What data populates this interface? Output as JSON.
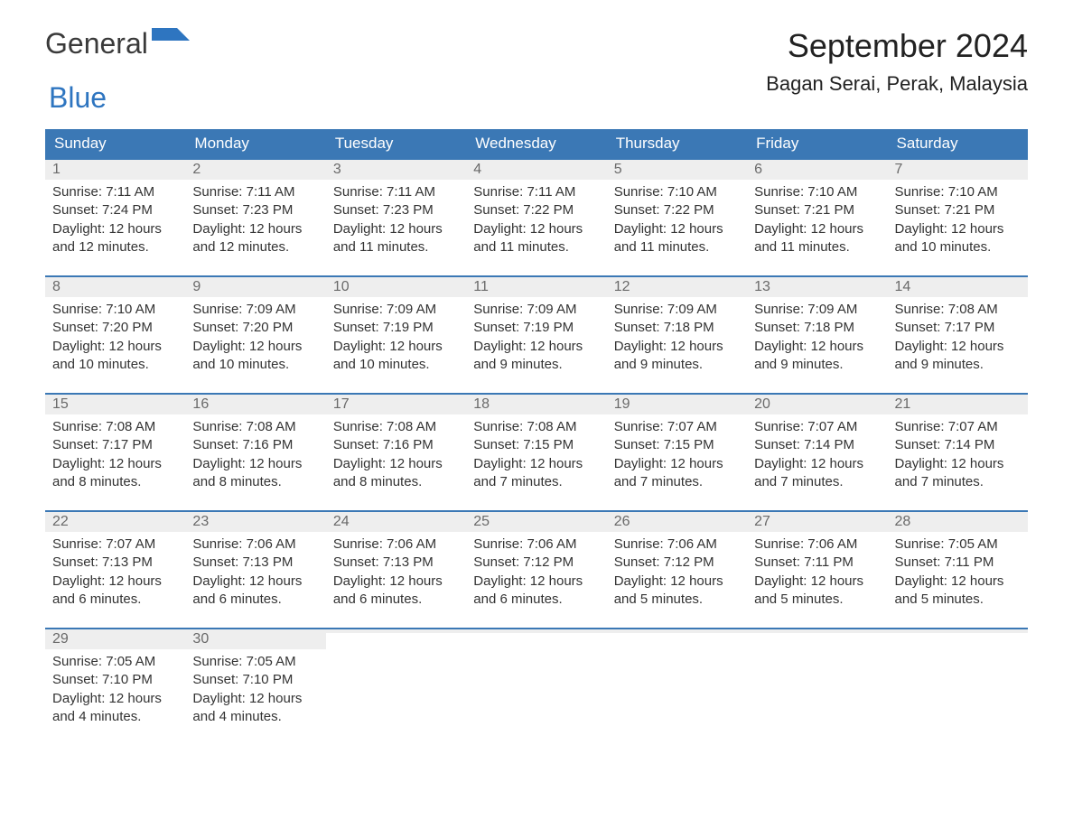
{
  "logo": {
    "text_general": "General",
    "text_blue": "Blue"
  },
  "title": "September 2024",
  "location": "Bagan Serai, Perak, Malaysia",
  "colors": {
    "header_bg": "#3b78b5",
    "header_text": "#ffffff",
    "daynum_bg": "#eeeeee",
    "daynum_text": "#6a6a6a",
    "body_text": "#333333",
    "week_border": "#3b78b5",
    "logo_blue": "#2e75c0",
    "background": "#ffffff"
  },
  "layout": {
    "columns": 7,
    "rows": 5,
    "title_fontsize": 36,
    "location_fontsize": 22,
    "dow_fontsize": 17,
    "daynum_fontsize": 16,
    "content_fontsize": 15
  },
  "days_of_week": [
    "Sunday",
    "Monday",
    "Tuesday",
    "Wednesday",
    "Thursday",
    "Friday",
    "Saturday"
  ],
  "weeks": [
    [
      {
        "num": "1",
        "sunrise": "Sunrise: 7:11 AM",
        "sunset": "Sunset: 7:24 PM",
        "dl1": "Daylight: 12 hours",
        "dl2": "and 12 minutes."
      },
      {
        "num": "2",
        "sunrise": "Sunrise: 7:11 AM",
        "sunset": "Sunset: 7:23 PM",
        "dl1": "Daylight: 12 hours",
        "dl2": "and 12 minutes."
      },
      {
        "num": "3",
        "sunrise": "Sunrise: 7:11 AM",
        "sunset": "Sunset: 7:23 PM",
        "dl1": "Daylight: 12 hours",
        "dl2": "and 11 minutes."
      },
      {
        "num": "4",
        "sunrise": "Sunrise: 7:11 AM",
        "sunset": "Sunset: 7:22 PM",
        "dl1": "Daylight: 12 hours",
        "dl2": "and 11 minutes."
      },
      {
        "num": "5",
        "sunrise": "Sunrise: 7:10 AM",
        "sunset": "Sunset: 7:22 PM",
        "dl1": "Daylight: 12 hours",
        "dl2": "and 11 minutes."
      },
      {
        "num": "6",
        "sunrise": "Sunrise: 7:10 AM",
        "sunset": "Sunset: 7:21 PM",
        "dl1": "Daylight: 12 hours",
        "dl2": "and 11 minutes."
      },
      {
        "num": "7",
        "sunrise": "Sunrise: 7:10 AM",
        "sunset": "Sunset: 7:21 PM",
        "dl1": "Daylight: 12 hours",
        "dl2": "and 10 minutes."
      }
    ],
    [
      {
        "num": "8",
        "sunrise": "Sunrise: 7:10 AM",
        "sunset": "Sunset: 7:20 PM",
        "dl1": "Daylight: 12 hours",
        "dl2": "and 10 minutes."
      },
      {
        "num": "9",
        "sunrise": "Sunrise: 7:09 AM",
        "sunset": "Sunset: 7:20 PM",
        "dl1": "Daylight: 12 hours",
        "dl2": "and 10 minutes."
      },
      {
        "num": "10",
        "sunrise": "Sunrise: 7:09 AM",
        "sunset": "Sunset: 7:19 PM",
        "dl1": "Daylight: 12 hours",
        "dl2": "and 10 minutes."
      },
      {
        "num": "11",
        "sunrise": "Sunrise: 7:09 AM",
        "sunset": "Sunset: 7:19 PM",
        "dl1": "Daylight: 12 hours",
        "dl2": "and 9 minutes."
      },
      {
        "num": "12",
        "sunrise": "Sunrise: 7:09 AM",
        "sunset": "Sunset: 7:18 PM",
        "dl1": "Daylight: 12 hours",
        "dl2": "and 9 minutes."
      },
      {
        "num": "13",
        "sunrise": "Sunrise: 7:09 AM",
        "sunset": "Sunset: 7:18 PM",
        "dl1": "Daylight: 12 hours",
        "dl2": "and 9 minutes."
      },
      {
        "num": "14",
        "sunrise": "Sunrise: 7:08 AM",
        "sunset": "Sunset: 7:17 PM",
        "dl1": "Daylight: 12 hours",
        "dl2": "and 9 minutes."
      }
    ],
    [
      {
        "num": "15",
        "sunrise": "Sunrise: 7:08 AM",
        "sunset": "Sunset: 7:17 PM",
        "dl1": "Daylight: 12 hours",
        "dl2": "and 8 minutes."
      },
      {
        "num": "16",
        "sunrise": "Sunrise: 7:08 AM",
        "sunset": "Sunset: 7:16 PM",
        "dl1": "Daylight: 12 hours",
        "dl2": "and 8 minutes."
      },
      {
        "num": "17",
        "sunrise": "Sunrise: 7:08 AM",
        "sunset": "Sunset: 7:16 PM",
        "dl1": "Daylight: 12 hours",
        "dl2": "and 8 minutes."
      },
      {
        "num": "18",
        "sunrise": "Sunrise: 7:08 AM",
        "sunset": "Sunset: 7:15 PM",
        "dl1": "Daylight: 12 hours",
        "dl2": "and 7 minutes."
      },
      {
        "num": "19",
        "sunrise": "Sunrise: 7:07 AM",
        "sunset": "Sunset: 7:15 PM",
        "dl1": "Daylight: 12 hours",
        "dl2": "and 7 minutes."
      },
      {
        "num": "20",
        "sunrise": "Sunrise: 7:07 AM",
        "sunset": "Sunset: 7:14 PM",
        "dl1": "Daylight: 12 hours",
        "dl2": "and 7 minutes."
      },
      {
        "num": "21",
        "sunrise": "Sunrise: 7:07 AM",
        "sunset": "Sunset: 7:14 PM",
        "dl1": "Daylight: 12 hours",
        "dl2": "and 7 minutes."
      }
    ],
    [
      {
        "num": "22",
        "sunrise": "Sunrise: 7:07 AM",
        "sunset": "Sunset: 7:13 PM",
        "dl1": "Daylight: 12 hours",
        "dl2": "and 6 minutes."
      },
      {
        "num": "23",
        "sunrise": "Sunrise: 7:06 AM",
        "sunset": "Sunset: 7:13 PM",
        "dl1": "Daylight: 12 hours",
        "dl2": "and 6 minutes."
      },
      {
        "num": "24",
        "sunrise": "Sunrise: 7:06 AM",
        "sunset": "Sunset: 7:13 PM",
        "dl1": "Daylight: 12 hours",
        "dl2": "and 6 minutes."
      },
      {
        "num": "25",
        "sunrise": "Sunrise: 7:06 AM",
        "sunset": "Sunset: 7:12 PM",
        "dl1": "Daylight: 12 hours",
        "dl2": "and 6 minutes."
      },
      {
        "num": "26",
        "sunrise": "Sunrise: 7:06 AM",
        "sunset": "Sunset: 7:12 PM",
        "dl1": "Daylight: 12 hours",
        "dl2": "and 5 minutes."
      },
      {
        "num": "27",
        "sunrise": "Sunrise: 7:06 AM",
        "sunset": "Sunset: 7:11 PM",
        "dl1": "Daylight: 12 hours",
        "dl2": "and 5 minutes."
      },
      {
        "num": "28",
        "sunrise": "Sunrise: 7:05 AM",
        "sunset": "Sunset: 7:11 PM",
        "dl1": "Daylight: 12 hours",
        "dl2": "and 5 minutes."
      }
    ],
    [
      {
        "num": "29",
        "sunrise": "Sunrise: 7:05 AM",
        "sunset": "Sunset: 7:10 PM",
        "dl1": "Daylight: 12 hours",
        "dl2": "and 4 minutes."
      },
      {
        "num": "30",
        "sunrise": "Sunrise: 7:05 AM",
        "sunset": "Sunset: 7:10 PM",
        "dl1": "Daylight: 12 hours",
        "dl2": "and 4 minutes."
      },
      {
        "num": "",
        "sunrise": "",
        "sunset": "",
        "dl1": "",
        "dl2": ""
      },
      {
        "num": "",
        "sunrise": "",
        "sunset": "",
        "dl1": "",
        "dl2": ""
      },
      {
        "num": "",
        "sunrise": "",
        "sunset": "",
        "dl1": "",
        "dl2": ""
      },
      {
        "num": "",
        "sunrise": "",
        "sunset": "",
        "dl1": "",
        "dl2": ""
      },
      {
        "num": "",
        "sunrise": "",
        "sunset": "",
        "dl1": "",
        "dl2": ""
      }
    ]
  ]
}
